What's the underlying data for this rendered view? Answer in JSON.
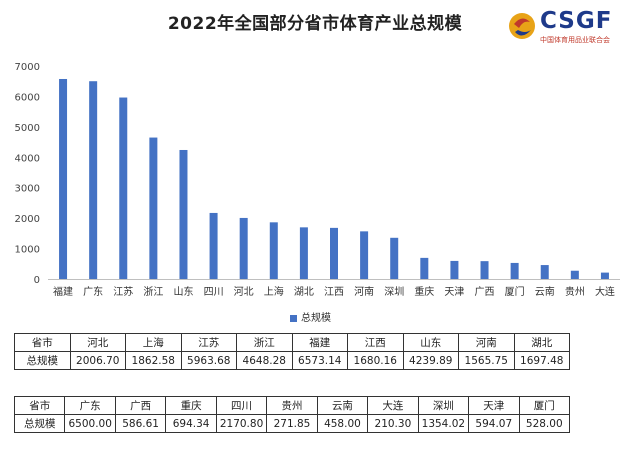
{
  "title": "2022年全国部分省市体育产业总规模",
  "logo": {
    "text": "CSGF",
    "subtitle": "中国体育用品业联合会"
  },
  "chart_data": {
    "type": "bar",
    "title": "2022年全国部分省市体育产业总规模",
    "categories": [
      "福建",
      "广东",
      "江苏",
      "浙江",
      "山东",
      "四川",
      "河北",
      "上海",
      "湖北",
      "江西",
      "河南",
      "深圳",
      "重庆",
      "天津",
      "广西",
      "厦门",
      "云南",
      "贵州",
      "大连"
    ],
    "series": [
      {
        "name": "总规模",
        "values": [
          6573.14,
          6500.0,
          5963.68,
          4648.28,
          4239.89,
          2170.8,
          2006.7,
          1862.58,
          1697.48,
          1680.16,
          1565.75,
          1354.02,
          694.34,
          594.07,
          586.61,
          528.0,
          458.0,
          271.85,
          210.3
        ]
      }
    ],
    "ylim": [
      0,
      7000
    ],
    "yticks": [
      0,
      1000,
      2000,
      3000,
      4000,
      5000,
      6000,
      7000
    ],
    "grid": false,
    "legend": "bottom",
    "color": "#4472c4"
  },
  "table1": {
    "header_label": "省市",
    "row_label": "总规模",
    "provinces": [
      "河北",
      "上海",
      "江苏",
      "浙江",
      "福建",
      "江西",
      "山东",
      "河南",
      "湖北"
    ],
    "values": [
      "2006.70",
      "1862.58",
      "5963.68",
      "4648.28",
      "6573.14",
      "1680.16",
      "4239.89",
      "1565.75",
      "1697.48"
    ]
  },
  "table2": {
    "header_label": "省市",
    "row_label": "总规模",
    "provinces": [
      "广东",
      "广西",
      "重庆",
      "四川",
      "贵州",
      "云南",
      "大连",
      "深圳",
      "天津",
      "厦门"
    ],
    "values": [
      "6500.00",
      "586.61",
      "694.34",
      "2170.80",
      "271.85",
      "458.00",
      "210.30",
      "1354.02",
      "594.07",
      "528.00"
    ]
  }
}
